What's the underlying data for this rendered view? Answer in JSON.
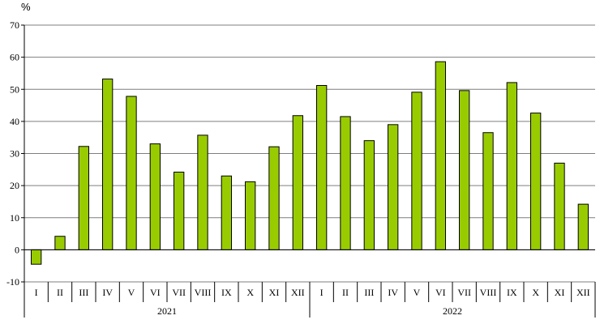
{
  "chart_data": {
    "type": "bar",
    "title": "",
    "xlabel": "",
    "ylabel": "%",
    "ylim": [
      -10,
      70
    ],
    "yticks": [
      -10,
      0,
      10,
      20,
      30,
      40,
      50,
      60,
      70
    ],
    "grid": true,
    "legend": "none",
    "bar_color": "#99cc00",
    "bar_edge_color": "#000000",
    "years": [
      {
        "label": "2021",
        "months": [
          "I",
          "II",
          "III",
          "IV",
          "V",
          "VI",
          "VII",
          "VIII",
          "IX",
          "X",
          "XI",
          "XII"
        ]
      },
      {
        "label": "2022",
        "months": [
          "I",
          "II",
          "III",
          "IV",
          "V",
          "VI",
          "VII",
          "VIII",
          "IX",
          "X",
          "XI",
          "XII"
        ]
      }
    ],
    "categories": [
      "I",
      "II",
      "III",
      "IV",
      "V",
      "VI",
      "VII",
      "VIII",
      "IX",
      "X",
      "XI",
      "XII",
      "I",
      "II",
      "III",
      "IV",
      "V",
      "VI",
      "VII",
      "VIII",
      "IX",
      "X",
      "XI",
      "XII"
    ],
    "values": [
      -4.5,
      4.2,
      32.2,
      53.2,
      47.8,
      33.0,
      24.2,
      35.7,
      23.0,
      21.2,
      32.1,
      41.8,
      51.2,
      41.5,
      34.0,
      39.0,
      49.1,
      58.6,
      49.6,
      36.5,
      52.1,
      42.6,
      27.0,
      14.2
    ]
  }
}
